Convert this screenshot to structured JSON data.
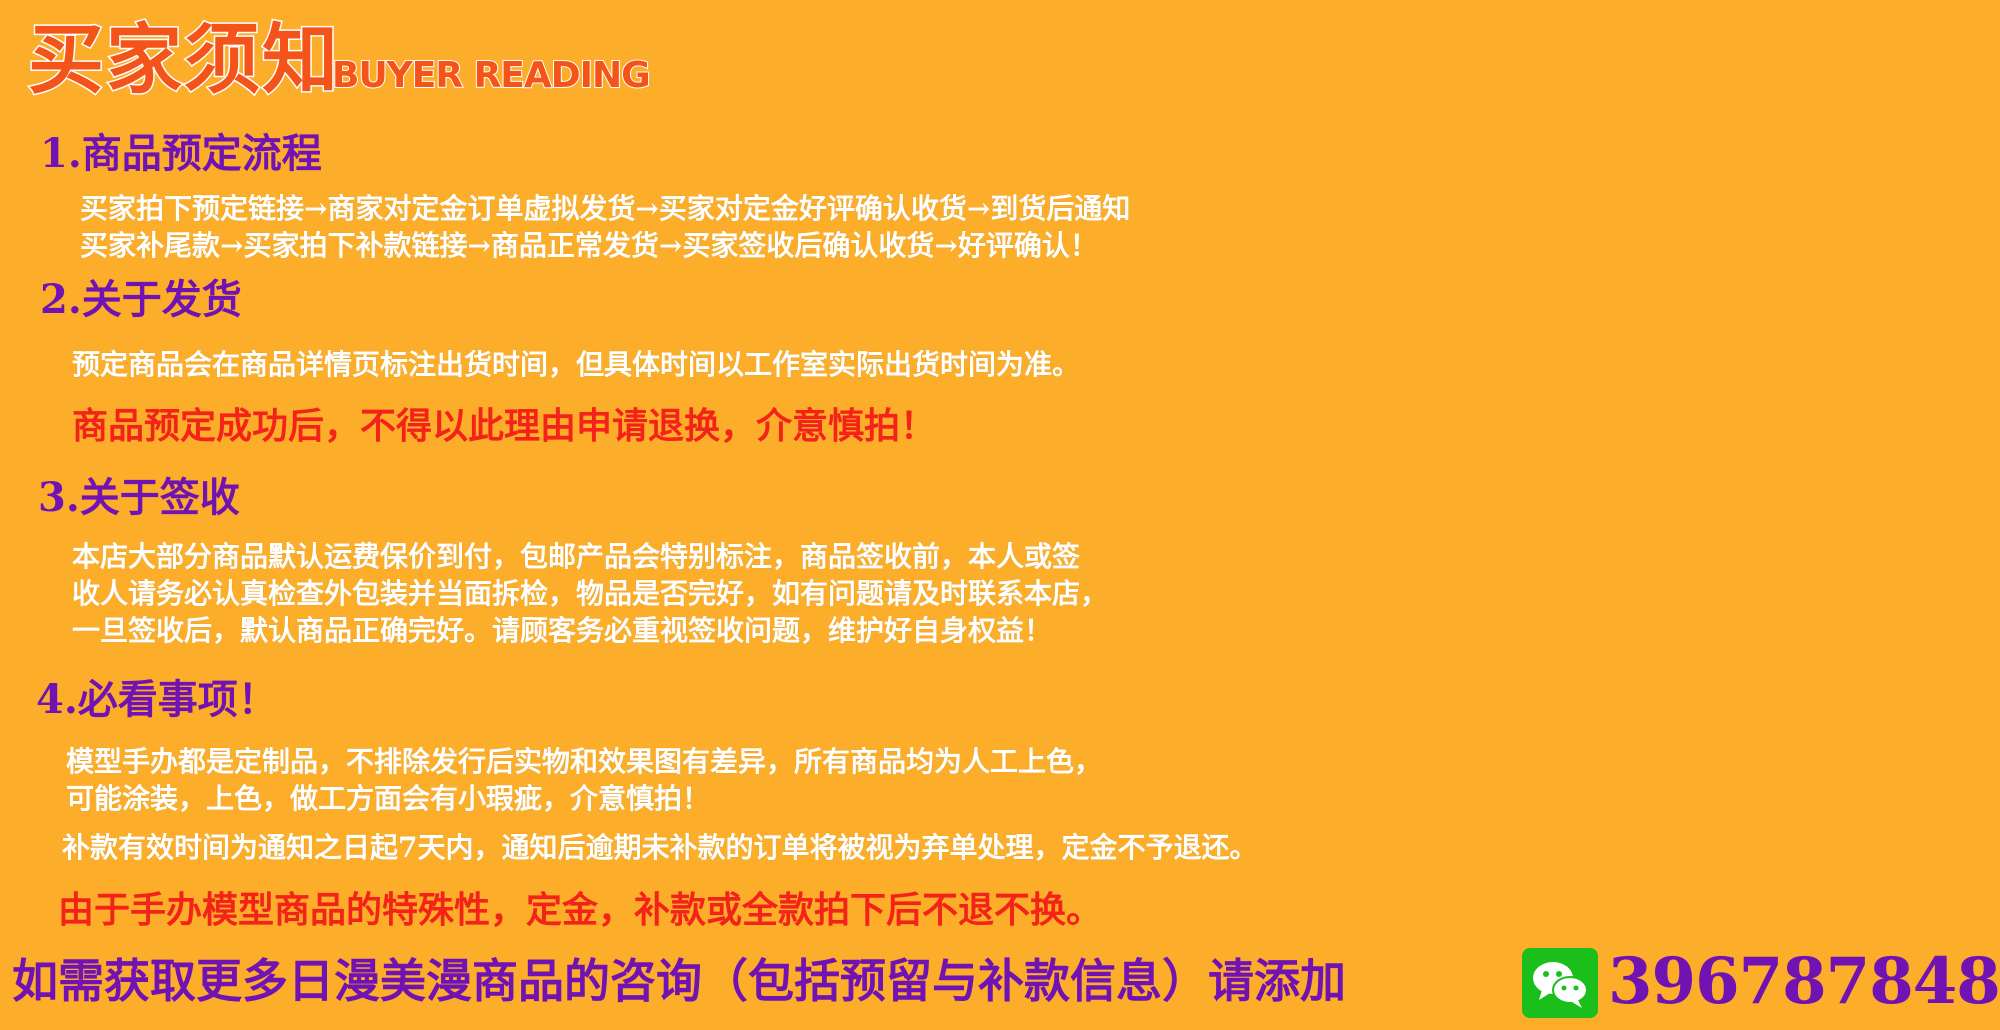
{
  "header": {
    "title_cn": "买家须知",
    "title_en": "BUYER READING"
  },
  "sections": [
    {
      "heading": "1.商品预定流程",
      "lines": [
        "买家拍下预定链接→商家对定金订单虚拟发货→买家对定金好评确认收货→到货后通知",
        "买家补尾款→买家拍下补款链接→商品正常发货→买家签收后确认收货→好评确认！"
      ]
    },
    {
      "heading": "2.关于发货",
      "lines": [
        "预定商品会在商品详情页标注出货时间，但具体时间以工作室实际出货时间为准。"
      ],
      "warning": "商品预定成功后，不得以此理由申请退换，介意慎拍！"
    },
    {
      "heading": "3.关于签收",
      "lines": [
        "本店大部分商品默认运费保价到付，包邮产品会特别标注，商品签收前，本人或签",
        "收人请务必认真检查外包装并当面拆检，物品是否完好，如有问题请及时联系本店，",
        "一旦签收后，默认商品正确完好。请顾客务必重视签收问题，维护好自身权益！"
      ]
    },
    {
      "heading": "4.必看事项！",
      "lines": [
        "模型手办都是定制品，不排除发行后实物和效果图有差异，所有商品均为人工上色，",
        "可能涂装，上色，做工方面会有小瑕疵，介意慎拍！",
        "补款有效时间为通知之日起7天内，通知后逾期未补款的订单将被视为弃单处理，定金不予退还。"
      ],
      "warning": "由于手办模型商品的特殊性，定金，补款或全款拍下后不退不换。"
    }
  ],
  "footer": {
    "text": "如需获取更多日漫美漫商品的咨询（包括预留与补款信息）请添加",
    "icon": "wechat-icon",
    "contact_number": "396787848"
  },
  "colors": {
    "background": "#fcae2a",
    "heading": "#7113b3",
    "warning": "#f4231a",
    "title": "#f4531a",
    "body": "#ffffff",
    "wechat": "#1bbf1b"
  }
}
